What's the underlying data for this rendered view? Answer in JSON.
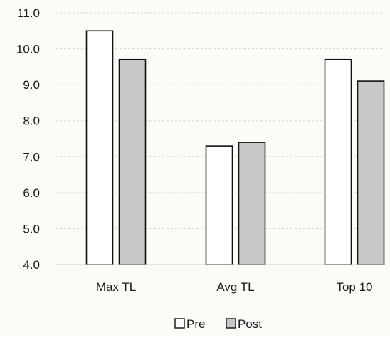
{
  "chart_data": {
    "type": "bar",
    "title": "",
    "xlabel": "",
    "ylabel": "",
    "categories": [
      "Max TL",
      "Avg TL",
      "Top 10"
    ],
    "series": [
      {
        "name": "Pre",
        "values": [
          10.5,
          7.3,
          9.7
        ],
        "color": "#ffffff"
      },
      {
        "name": "Post",
        "values": [
          9.7,
          7.4,
          9.1
        ],
        "color": "#c8c8c8"
      }
    ],
    "ylim": [
      4.0,
      11.0
    ],
    "yticks": [
      "4.0",
      "5.0",
      "6.0",
      "7.0",
      "8.0",
      "9.0",
      "10.0",
      "11.0"
    ],
    "grid": true,
    "legend_position": "bottom-center"
  }
}
